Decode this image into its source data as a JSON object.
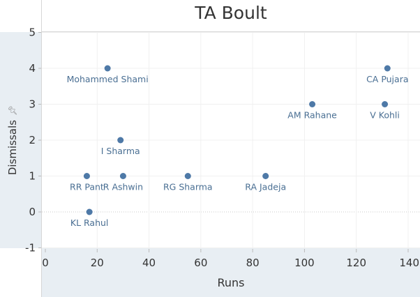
{
  "chart_data": {
    "type": "scatter",
    "title": "TA Boult",
    "xlabel": "Runs",
    "ylabel": "Dismissals",
    "xlim": [
      0,
      140
    ],
    "ylim": [
      -1,
      5
    ],
    "x_ticks": [
      "0",
      "20",
      "40",
      "60",
      "80",
      "100",
      "120",
      "140"
    ],
    "y_ticks": [
      "-1",
      "0",
      "1",
      "2",
      "3",
      "4",
      "5"
    ],
    "grid": true,
    "zero_line": "dotted",
    "marker_color": "#4e79a7",
    "label_color": "#4a6f93",
    "points": [
      {
        "label": "Mohammed Shami",
        "x": 24,
        "y": 4
      },
      {
        "label": "CA Pujara",
        "x": 132,
        "y": 4
      },
      {
        "label": "AM Rahane",
        "x": 103,
        "y": 3
      },
      {
        "label": "V Kohli",
        "x": 131,
        "y": 3
      },
      {
        "label": "I Sharma",
        "x": 29,
        "y": 2
      },
      {
        "label": "RR Pant",
        "x": 16,
        "y": 1
      },
      {
        "label": "R Ashwin",
        "x": 30,
        "y": 1
      },
      {
        "label": "RG Sharma",
        "x": 55,
        "y": 1
      },
      {
        "label": "RA Jadeja",
        "x": 85,
        "y": 1
      },
      {
        "label": "KL Rahul",
        "x": 17,
        "y": 0
      }
    ]
  }
}
